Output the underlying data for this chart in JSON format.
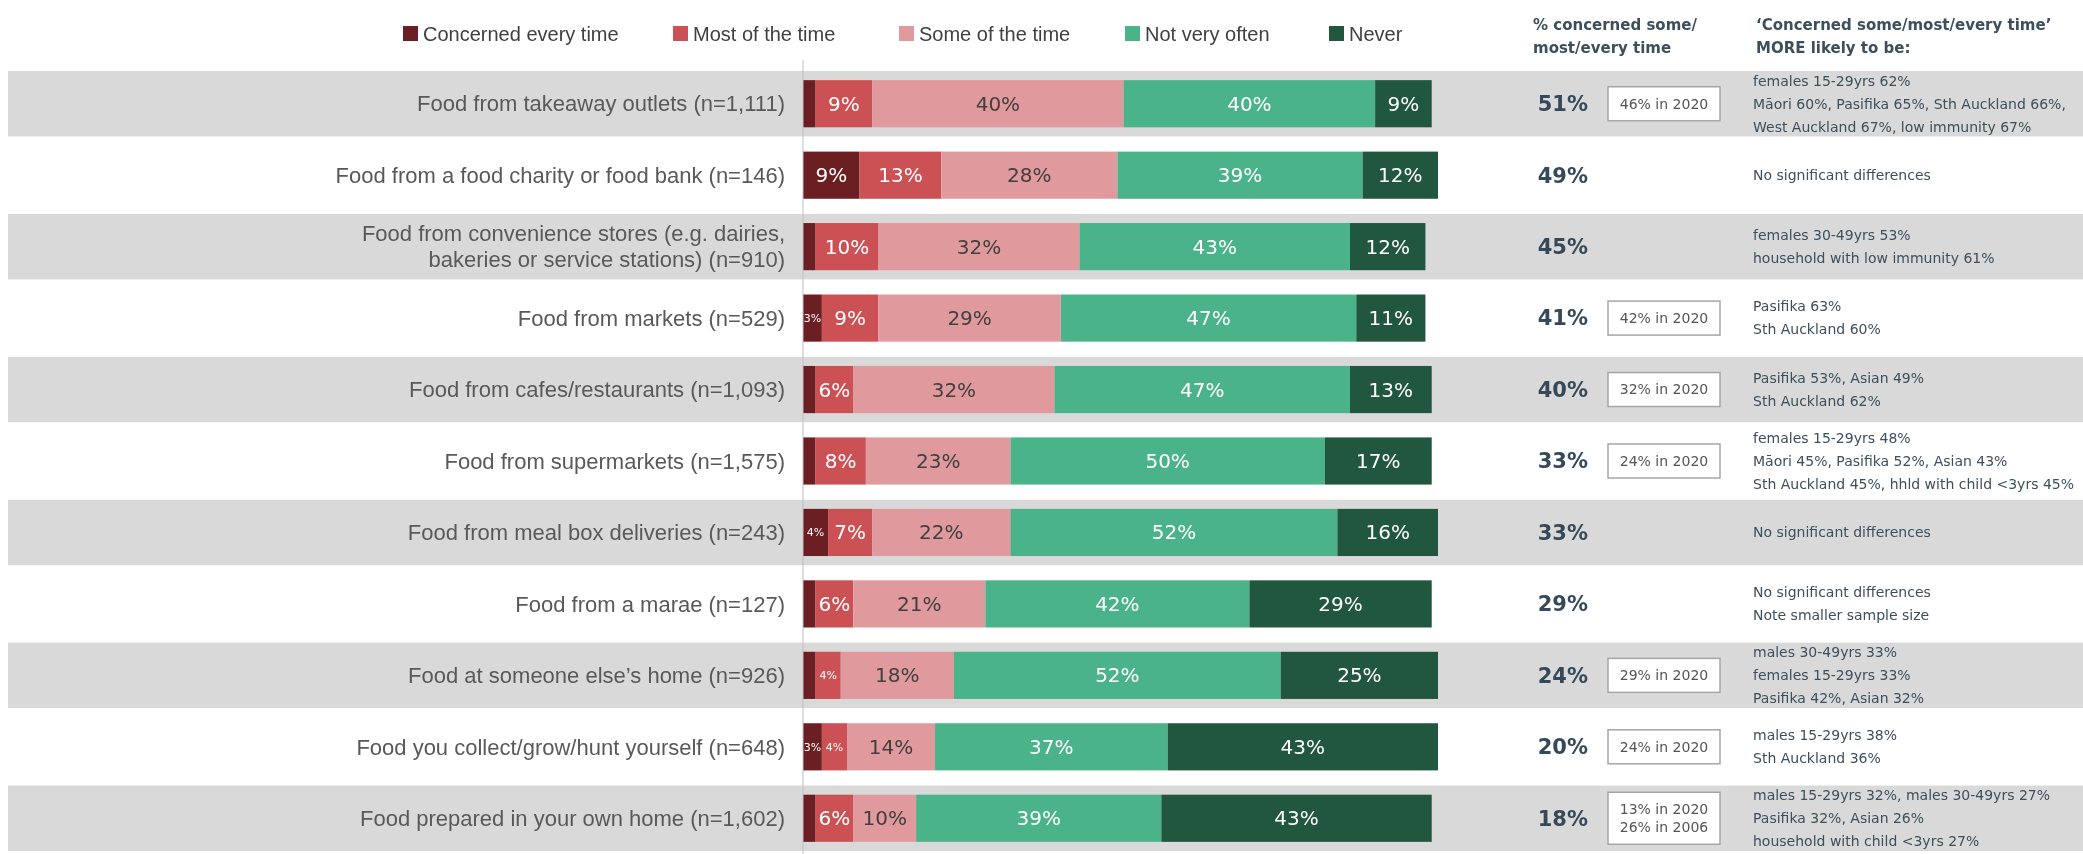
{
  "chart_data": {
    "type": "bar",
    "orientation": "horizontal",
    "stacked": true,
    "legend": "top",
    "tick_labels": "y",
    "categories": [
      "Food from takeaway outlets (n=1,111)",
      "Food from a food charity or food bank (n=146)",
      "Food from convenience stores (e.g. dairies, bakeries or service stations) (n=910)",
      "Food from markets (n=529)",
      "Food from cafes/restaurants (n=1,093)",
      "Food from supermarkets (n=1,575)",
      "Food from meal box deliveries (n=243)",
      "Food from a marae (n=127)",
      "Food at someone else’s home (n=926)",
      "Food you collect/grow/hunt yourself (n=648)",
      "Food prepared in your own home (n=1,602)"
    ],
    "series": [
      {
        "name": "Concerned every time",
        "color": "#6b1f22",
        "values": [
          2,
          9,
          2,
          3,
          2,
          2,
          4,
          2,
          2,
          3,
          2
        ],
        "value_labels": [
          null,
          "9%",
          null,
          "3%",
          null,
          null,
          "4%",
          null,
          null,
          "3%",
          null
        ]
      },
      {
        "name": "Most of the time",
        "color": "#cc5155",
        "values": [
          9,
          13,
          10,
          9,
          6,
          8,
          7,
          6,
          4,
          4,
          6
        ],
        "value_labels": [
          "9%",
          "13%",
          "10%",
          "9%",
          "6%",
          "8%",
          "7%",
          "6%",
          "4%",
          "4%",
          "6%"
        ]
      },
      {
        "name": "Some of the time",
        "color": "#e0999c",
        "values": [
          40,
          28,
          32,
          29,
          32,
          23,
          22,
          21,
          18,
          14,
          10
        ],
        "value_labels": [
          "40%",
          "28%",
          "32%",
          "29%",
          "32%",
          "23%",
          "22%",
          "21%",
          "18%",
          "14%",
          "10%"
        ]
      },
      {
        "name": "Not very often",
        "color": "#4ab38a",
        "values": [
          40,
          39,
          43,
          47,
          47,
          50,
          52,
          42,
          52,
          37,
          39
        ],
        "value_labels": [
          "40%",
          "39%",
          "43%",
          "47%",
          "47%",
          "50%",
          "52%",
          "42%",
          "52%",
          "37%",
          "39%"
        ]
      },
      {
        "name": "Never",
        "color": "#22573f",
        "values": [
          9,
          12,
          12,
          11,
          13,
          17,
          16,
          29,
          25,
          43,
          43
        ],
        "value_labels": [
          "9%",
          "12%",
          "12%",
          "11%",
          "13%",
          "17%",
          "16%",
          "29%",
          "25%",
          "43%",
          "43%"
        ]
      }
    ],
    "bands": [
      {
        "axis": "y",
        "from": "Food from takeaway outlets (n=1,111)",
        "to": "Food from takeaway outlets (n=1,111)",
        "color": "#d9d9d9"
      },
      {
        "axis": "y",
        "from": "Food from convenience stores (e.g. dairies, bakeries or service stations) (n=910)",
        "to": "Food from convenience stores (e.g. dairies, bakeries or service stations) (n=910)",
        "color": "#d9d9d9"
      },
      {
        "axis": "y",
        "from": "Food from cafes/restaurants (n=1,093)",
        "to": "Food from cafes/restaurants (n=1,093)",
        "color": "#d9d9d9"
      },
      {
        "axis": "y",
        "from": "Food from meal box deliveries (n=243)",
        "to": "Food from meal box deliveries (n=243)",
        "color": "#d9d9d9"
      },
      {
        "axis": "y",
        "from": "Food at someone else’s home (n=926)",
        "to": "Food at someone else’s home (n=926)",
        "color": "#d9d9d9"
      },
      {
        "axis": "y",
        "from": "Food prepared in your own home (n=1,602)",
        "to": "Food prepared in your own home (n=1,602)",
        "color": "#d9d9d9"
      }
    ],
    "annotations": [
      "% concerned some/ most/every time",
      "‘Concerned some/most/every time’ MORE likely to be:",
      "51%",
      "46% in 2020",
      "females 15-29yrs 62%\nMāori 60%, Pasifika 65%, Sth Auckland 66%,\nWest Auckland 67%, low immunity 67%",
      "49%",
      null,
      "No significant differences",
      "45%",
      null,
      "females 30-49yrs 53%\nhousehold with low immunity 61%",
      "41%",
      "42% in 2020",
      "Pasifika 63%\nSth Auckland 60%",
      "40%",
      "32% in 2020",
      "Pasifika 53%, Asian 49%\nSth Auckland 62%",
      "33%",
      "24% in 2020",
      "females 15-29yrs 48%\nMāori 45%, Pasifika 52%, Asian 43%\nSth Auckland 45%, hhld with child <3yrs 45%",
      "33%",
      null,
      "No significant differences",
      "29%",
      null,
      "No significant differences\nNote smaller sample size",
      "24%",
      "29% in 2020",
      "males 30-49yrs 33%\nfemales 15-29yrs 33%\nPasifika 42%, Asian 32%",
      "20%",
      "24% in 2020",
      "males 15-29yrs 38%\nSth Auckland 36%",
      "18%",
      "13% in 2020\n26% in 2006",
      "males 15-29yrs 32%, males 30-49yrs 27%\nPasifika 32%, Asian 26%\nhousehold with child <3yrs 27%"
    ]
  }
}
